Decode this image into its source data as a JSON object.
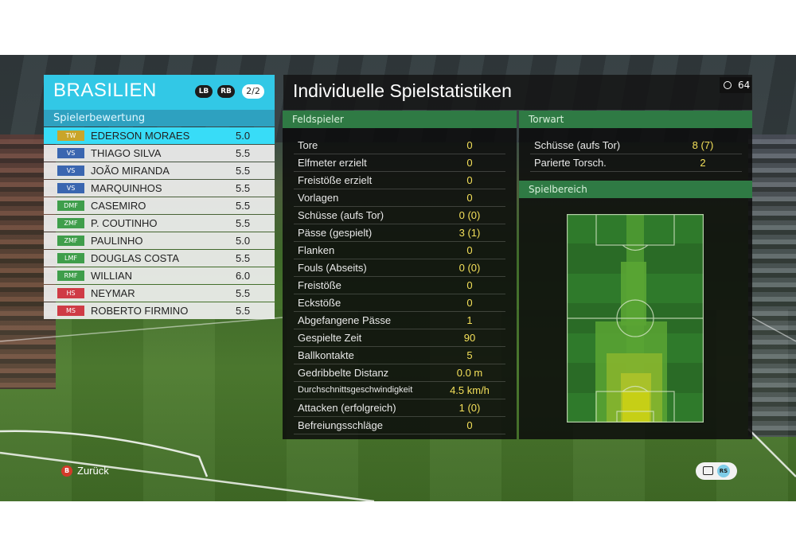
{
  "team": {
    "name": "BRASILIEN",
    "lb": "LB",
    "rb": "RB",
    "page": "2/2",
    "section": "Spielerbewertung",
    "players": [
      {
        "pos": "TW",
        "name": "EDERSON MORAES",
        "rating": "5.0"
      },
      {
        "pos": "VS",
        "name": "THIAGO SILVA",
        "rating": "5.5"
      },
      {
        "pos": "VS",
        "name": "JOÃO MIRANDA",
        "rating": "5.5"
      },
      {
        "pos": "VS",
        "name": "MARQUINHOS",
        "rating": "5.5"
      },
      {
        "pos": "DMF",
        "name": "CASEMIRO",
        "rating": "5.5"
      },
      {
        "pos": "ZMF",
        "name": "P. COUTINHO",
        "rating": "5.5"
      },
      {
        "pos": "ZMF",
        "name": "PAULINHO",
        "rating": "5.0"
      },
      {
        "pos": "LMF",
        "name": "DOUGLAS COSTA",
        "rating": "5.5"
      },
      {
        "pos": "RMF",
        "name": "WILLIAN",
        "rating": "6.0"
      },
      {
        "pos": "HS",
        "name": "NEYMAR",
        "rating": "5.5"
      },
      {
        "pos": "MS",
        "name": "ROBERTO FIRMINO",
        "rating": "5.5"
      }
    ],
    "colors": {
      "TW": "#c9a52a",
      "VS": "#3a66b0",
      "DMF": "#3f9e4b",
      "ZMF": "#3f9e4b",
      "LMF": "#3f9e4b",
      "RMF": "#3f9e4b",
      "HS": "#cf3b45",
      "MS": "#cf3b45"
    }
  },
  "stats": {
    "title": "Individuelle Spielstatistiken",
    "timer": "64",
    "field": {
      "head": "Feldspieler",
      "rows": [
        {
          "label": "Tore",
          "value": "0"
        },
        {
          "label": "Elfmeter erzielt",
          "value": "0"
        },
        {
          "label": "Freistöße erzielt",
          "value": "0"
        },
        {
          "label": "Vorlagen",
          "value": "0"
        },
        {
          "label": "Schüsse (aufs Tor)",
          "value": "0 (0)"
        },
        {
          "label": "Pässe (gespielt)",
          "value": "3 (1)"
        },
        {
          "label": "Flanken",
          "value": "0"
        },
        {
          "label": "Fouls (Abseits)",
          "value": "0 (0)"
        },
        {
          "label": "Freistöße",
          "value": "0"
        },
        {
          "label": "Eckstöße",
          "value": "0"
        },
        {
          "label": "Abgefangene Pässe",
          "value": "1"
        },
        {
          "label": "Gespielte Zeit",
          "value": "90"
        },
        {
          "label": "Ballkontakte",
          "value": "5"
        },
        {
          "label": "Gedribbelte Distanz",
          "value": "0.0 m"
        },
        {
          "label": "Durchschnittsgeschwindigkeit",
          "value": "4.5 km/h"
        },
        {
          "label": "Attacken (erfolgreich)",
          "value": "1 (0)"
        },
        {
          "label": "Befreiungsschläge",
          "value": "0"
        }
      ]
    },
    "goalkeeper": {
      "head": "Torwart",
      "rows": [
        {
          "label": "Schüsse (aufs Tor)",
          "value": "8 (7)"
        },
        {
          "label": "Parierte Torsch.",
          "value": "2"
        }
      ]
    },
    "area": {
      "head": "Spielbereich"
    }
  },
  "footer": {
    "b_icon": "B",
    "back": "Zurück",
    "rs": "RS"
  }
}
